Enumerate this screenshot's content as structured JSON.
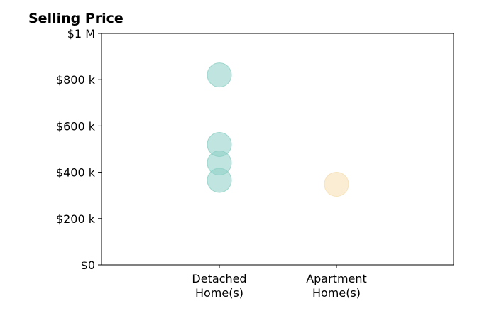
{
  "chart_data": {
    "type": "scatter",
    "title": "Selling Price",
    "xlabel": "",
    "ylabel": "",
    "categories": [
      "Detached\nHome(s)",
      "Apartment\nHome(s)"
    ],
    "ylim": [
      0,
      1000000
    ],
    "yticks": [
      0,
      200000,
      400000,
      600000,
      800000,
      1000000
    ],
    "ytick_labels": [
      "$0",
      "$200 k",
      "$400 k",
      "$600 k",
      "$800 k",
      "$1 M"
    ],
    "grid": false,
    "series": [
      {
        "category": "Detached\nHome(s)",
        "color": "#8ccfc6",
        "values": [
          820000,
          520000,
          440000,
          365000
        ]
      },
      {
        "category": "Apartment\nHome(s)",
        "color": "#f5deb0",
        "values": [
          348000
        ]
      }
    ]
  }
}
